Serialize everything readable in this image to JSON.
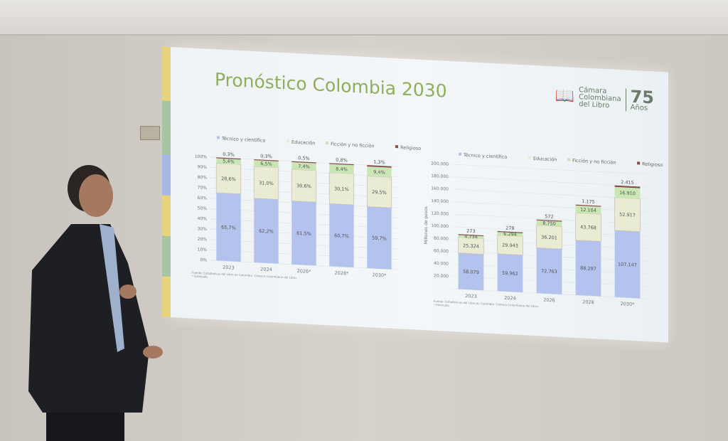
{
  "slide": {
    "title": "Pronóstico Colombia 2030",
    "logo": {
      "line1": "Cámara",
      "line2": "Colombiana",
      "line3": "del Libro",
      "anniversary": "75",
      "anniversary_sub": "Años"
    }
  },
  "colors": {
    "Técnico y científico": "#b4c3ee",
    "Educación": "#e9ecd3",
    "Ficción y no ficción": "#c9e6b4",
    "Religioso": "#8a4a4e"
  },
  "chart_data": [
    {
      "type": "bar",
      "stacked": true,
      "categories": [
        "2023",
        "2024",
        "2026*",
        "2028*",
        "2030*"
      ],
      "series": [
        {
          "name": "Técnico y científico",
          "values": [
            "65,7%",
            "62,2%",
            "61,5%",
            "60,7%",
            "59,7%"
          ],
          "num": [
            65.7,
            62.2,
            61.5,
            60.7,
            59.7
          ]
        },
        {
          "name": "Educación",
          "values": [
            "28,6%",
            "31,0%",
            "30,6%",
            "30,1%",
            "29,5%"
          ],
          "num": [
            28.6,
            31.0,
            30.6,
            30.1,
            29.5
          ]
        },
        {
          "name": "Ficción y no ficción",
          "values": [
            "5,4%",
            "6,5%",
            "7,4%",
            "8,4%",
            "9,4%"
          ],
          "num": [
            5.4,
            6.5,
            7.4,
            8.4,
            9.4
          ]
        },
        {
          "name": "Religioso",
          "values": [
            "0,3%",
            "0,3%",
            "0,5%",
            "0,8%",
            "1,3%"
          ],
          "num": [
            0.3,
            0.3,
            0.5,
            0.8,
            1.3
          ]
        }
      ],
      "yticks": [
        "0%",
        "10%",
        "20%",
        "30%",
        "40%",
        "50%",
        "60%",
        "70%",
        "80%",
        "90%",
        "100%"
      ],
      "ylim": [
        0,
        100
      ],
      "legend": "top",
      "grid": true,
      "source": "Fuente: Estadísticas del Libro en Colombia. Cámara Colombiana del Libro.",
      "note": "* Estimado"
    },
    {
      "type": "bar",
      "stacked": true,
      "categories": [
        "2023",
        "2024",
        "2026",
        "2028",
        "2030*"
      ],
      "series": [
        {
          "name": "Técnico y científico",
          "values": [
            "58.079",
            "59.962",
            "72.763",
            "88.297",
            "107.147"
          ],
          "num": [
            58079,
            59962,
            72763,
            88297,
            107147
          ]
        },
        {
          "name": "Educación",
          "values": [
            "25.324",
            "29.943",
            "36.201",
            "43.768",
            "52.917"
          ],
          "num": [
            25324,
            29943,
            36201,
            43768,
            52917
          ]
        },
        {
          "name": "Ficción y no ficción",
          "values": [
            "4.734",
            "6.294",
            "8.750",
            "12.164",
            "16.910"
          ],
          "num": [
            4734,
            6294,
            8750,
            12164,
            16910
          ]
        },
        {
          "name": "Religioso",
          "values": [
            "273",
            "278",
            "572",
            "1.175",
            "2.415"
          ],
          "num": [
            273,
            278,
            572,
            1175,
            2415
          ]
        }
      ],
      "yticks": [
        "",
        "20.000",
        "40.000",
        "60.000",
        "80.000",
        "100.000",
        "120.000",
        "140.000",
        "160.000",
        "180.000",
        "200.000"
      ],
      "ylabel": "Millones de pesos",
      "ylim": [
        0,
        200000
      ],
      "legend": "top",
      "grid": true,
      "source": "Fuente: Estadísticas del Libro en Colombia. Cámara Colombiana del Libro.",
      "note": "* Estimado"
    }
  ]
}
